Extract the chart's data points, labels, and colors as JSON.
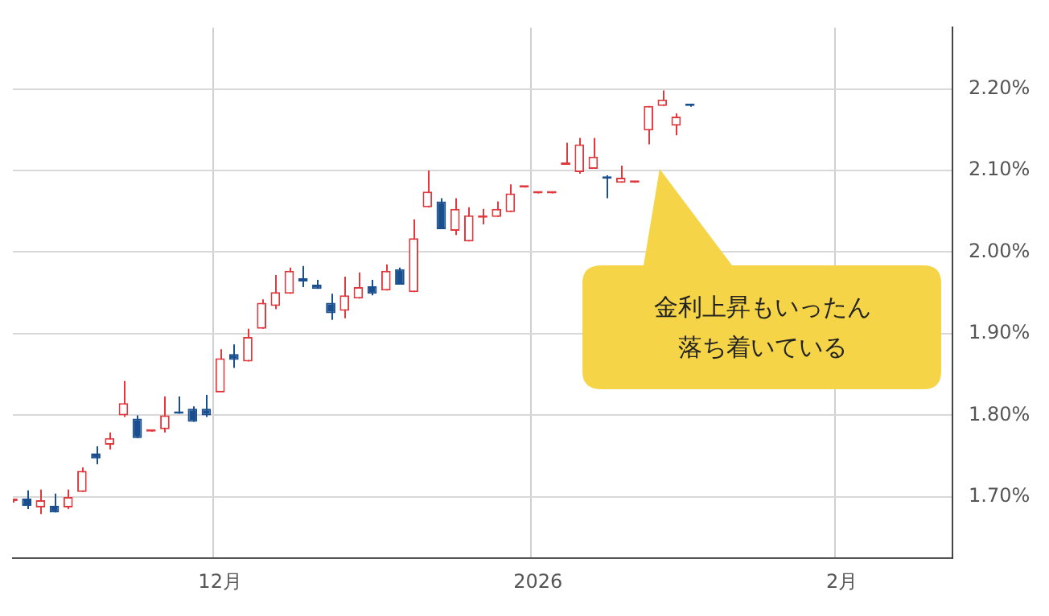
{
  "chart_data": {
    "type": "candlestick",
    "categories": [
      null,
      null,
      null,
      null,
      null,
      null,
      null,
      null,
      null,
      null,
      null,
      null,
      null,
      null,
      null,
      "12月",
      null,
      null,
      null,
      null,
      null,
      null,
      null,
      null,
      null,
      null,
      null,
      null,
      null,
      null,
      null,
      null,
      null,
      null,
      null,
      null,
      null,
      null,
      "2026",
      null,
      null,
      null,
      null,
      null,
      null,
      null,
      null,
      null,
      null,
      null,
      null,
      null,
      null,
      null,
      null,
      null,
      null,
      null,
      null,
      null,
      "2月",
      null,
      null,
      null,
      null,
      null,
      null,
      null,
      null
    ],
    "ohlc": [
      [
        1.695,
        1.697,
        1.693,
        1.696
      ],
      [
        1.698,
        1.708,
        1.685,
        1.689
      ],
      [
        1.687,
        1.709,
        1.679,
        1.696
      ],
      [
        1.689,
        1.704,
        1.681,
        1.681
      ],
      [
        1.687,
        1.709,
        1.685,
        1.7
      ],
      [
        1.706,
        1.736,
        1.706,
        1.732
      ],
      [
        1.753,
        1.762,
        1.74,
        1.747
      ],
      [
        1.764,
        1.779,
        1.758,
        1.772
      ],
      [
        1.8,
        1.842,
        1.798,
        1.815
      ],
      [
        1.796,
        1.8,
        1.772,
        1.772
      ],
      [
        1.78,
        1.781,
        1.78,
        1.781
      ],
      [
        1.783,
        1.823,
        1.779,
        1.8
      ],
      [
        1.803,
        1.823,
        1.802,
        1.802
      ],
      [
        1.808,
        1.811,
        1.792,
        1.792
      ],
      [
        1.808,
        1.825,
        1.798,
        1.8
      ],
      [
        1.828,
        1.881,
        1.828,
        1.87
      ],
      [
        1.875,
        1.887,
        1.858,
        1.868
      ],
      [
        1.866,
        1.906,
        1.866,
        1.896
      ],
      [
        1.906,
        1.942,
        1.906,
        1.938
      ],
      [
        1.934,
        1.972,
        1.93,
        1.951
      ],
      [
        1.949,
        1.981,
        1.949,
        1.977
      ],
      [
        1.968,
        1.983,
        1.957,
        1.964
      ],
      [
        1.96,
        1.966,
        1.955,
        1.955
      ],
      [
        1.938,
        1.949,
        1.917,
        1.925
      ],
      [
        1.928,
        1.97,
        1.919,
        1.947
      ],
      [
        1.943,
        1.975,
        1.943,
        1.957
      ],
      [
        1.958,
        1.966,
        1.947,
        1.949
      ],
      [
        1.953,
        1.985,
        1.953,
        1.977
      ],
      [
        1.979,
        1.981,
        1.96,
        1.96
      ],
      [
        1.951,
        2.04,
        1.951,
        2.017
      ],
      [
        2.055,
        2.1,
        2.055,
        2.074
      ],
      [
        2.062,
        2.066,
        2.028,
        2.028
      ],
      [
        2.026,
        2.066,
        2.021,
        2.053
      ],
      [
        2.013,
        2.055,
        2.013,
        2.045
      ],
      [
        2.042,
        2.053,
        2.034,
        2.043
      ],
      [
        2.043,
        2.062,
        2.043,
        2.053
      ],
      [
        2.049,
        2.083,
        2.049,
        2.072
      ],
      [
        2.079,
        2.08,
        2.079,
        2.08
      ],
      [
        2.072,
        2.073,
        2.072,
        2.073
      ],
      [
        2.072,
        2.073,
        2.072,
        2.073
      ],
      [
        2.107,
        2.134,
        2.107,
        2.108
      ],
      [
        2.098,
        2.14,
        2.096,
        2.132
      ],
      [
        2.102,
        2.14,
        2.102,
        2.117
      ],
      [
        2.091,
        2.094,
        2.066,
        2.09
      ],
      [
        2.085,
        2.106,
        2.085,
        2.091
      ],
      [
        2.085,
        2.086,
        2.085,
        2.086
      ],
      [
        2.149,
        2.179,
        2.132,
        2.179
      ],
      [
        2.179,
        2.198,
        2.179,
        2.187
      ],
      [
        2.155,
        2.17,
        2.143,
        2.166
      ],
      [
        2.18,
        2.181,
        2.178,
        2.179
      ],
      null,
      null,
      null,
      null,
      null,
      null,
      null,
      null,
      null,
      null,
      null,
      null,
      null,
      null,
      null,
      null,
      null,
      null,
      null
    ],
    "colors": [
      "#e0393e",
      "#1a4f8f",
      "#e0393e",
      "#1a4f8f",
      "#e0393e",
      "#e0393e",
      "#1a4f8f",
      "#e0393e",
      "#e0393e",
      "#1a4f8f",
      "#e0393e",
      "#e0393e",
      "#1a4f8f",
      "#1a4f8f",
      "#1a4f8f",
      "#e0393e",
      "#1a4f8f",
      "#e0393e",
      "#e0393e",
      "#e0393e",
      "#e0393e",
      "#1a4f8f",
      "#1a4f8f",
      "#1a4f8f",
      "#e0393e",
      "#e0393e",
      "#1a4f8f",
      "#e0393e",
      "#1a4f8f",
      "#e0393e",
      "#e0393e",
      "#1a4f8f",
      "#e0393e",
      "#e0393e",
      "#e0393e",
      "#e0393e",
      "#e0393e",
      "#e0393e",
      "#e0393e",
      "#e0393e",
      "#e0393e",
      "#e0393e",
      "#e0393e",
      "#1a4f8f",
      "#e0393e",
      "#e0393e",
      "#e0393e",
      "#e0393e",
      "#e0393e",
      "#1a4f8f",
      null,
      null,
      null,
      null,
      null,
      null,
      null,
      null,
      null,
      null,
      null,
      null,
      null,
      null,
      null,
      null,
      null,
      null,
      null
    ],
    "ylim": [
      1.625,
      2.275
    ],
    "yticks": [
      {
        "value": 1.7,
        "label": "1.70%"
      },
      {
        "value": 1.8,
        "label": "1.80%"
      },
      {
        "value": 1.9,
        "label": "1.90%"
      },
      {
        "value": 2.0,
        "label": "2.00%"
      },
      {
        "value": 2.1,
        "label": "2.10%"
      },
      {
        "value": 2.2,
        "label": "2.20%"
      }
    ],
    "grid": true,
    "annotations": [
      "金利上昇もいったん落ち着いている"
    ]
  }
}
